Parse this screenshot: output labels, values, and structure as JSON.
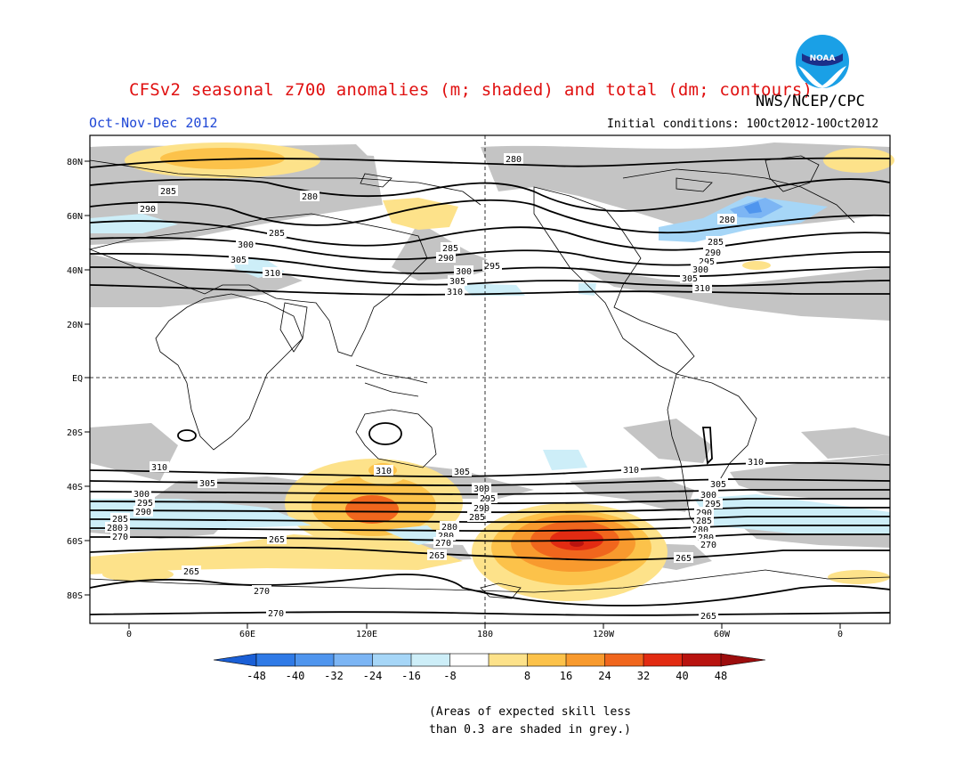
{
  "header": {
    "title": "CFSv2 seasonal z700 anomalies (m; shaded) and total (dm; contours)",
    "agency": "NWS/NCEP/CPC",
    "season": "Oct-Nov-Dec 2012",
    "initial_conditions": "Initial conditions: 10Oct2012-10Oct2012",
    "logo_text": "NOAA"
  },
  "map": {
    "lat_labels": [
      "80N",
      "60N",
      "40N",
      "20N",
      "EQ",
      "20S",
      "40S",
      "60S",
      "80S"
    ],
    "lon_labels": [
      "0",
      "60E",
      "120E",
      "180",
      "120W",
      "60W",
      "0"
    ],
    "contour_labels": [
      "280",
      "285",
      "290",
      "295",
      "300",
      "305",
      "310",
      "265",
      "270",
      "275",
      "280",
      "285",
      "290",
      "295",
      "300",
      "305",
      "310"
    ],
    "grey_shading_meaning": "expected skill less than 0.3"
  },
  "colorbar": {
    "ticks": [
      "-48",
      "-40",
      "-32",
      "-24",
      "-16",
      "-8",
      "8",
      "16",
      "24",
      "32",
      "40",
      "48"
    ],
    "colors": [
      "#1a5fd6",
      "#2f7ae6",
      "#4f95ee",
      "#7cb5f4",
      "#a6d6f7",
      "#cdeef8",
      "#ffffff",
      "#fde28a",
      "#fcc24a",
      "#f89a2e",
      "#f0661d",
      "#e22b12",
      "#b8130f",
      "#9c0d0d"
    ]
  },
  "footnote": {
    "line1": "(Areas of expected skill less",
    "line2": "than 0.3 are shaded in grey.)"
  }
}
